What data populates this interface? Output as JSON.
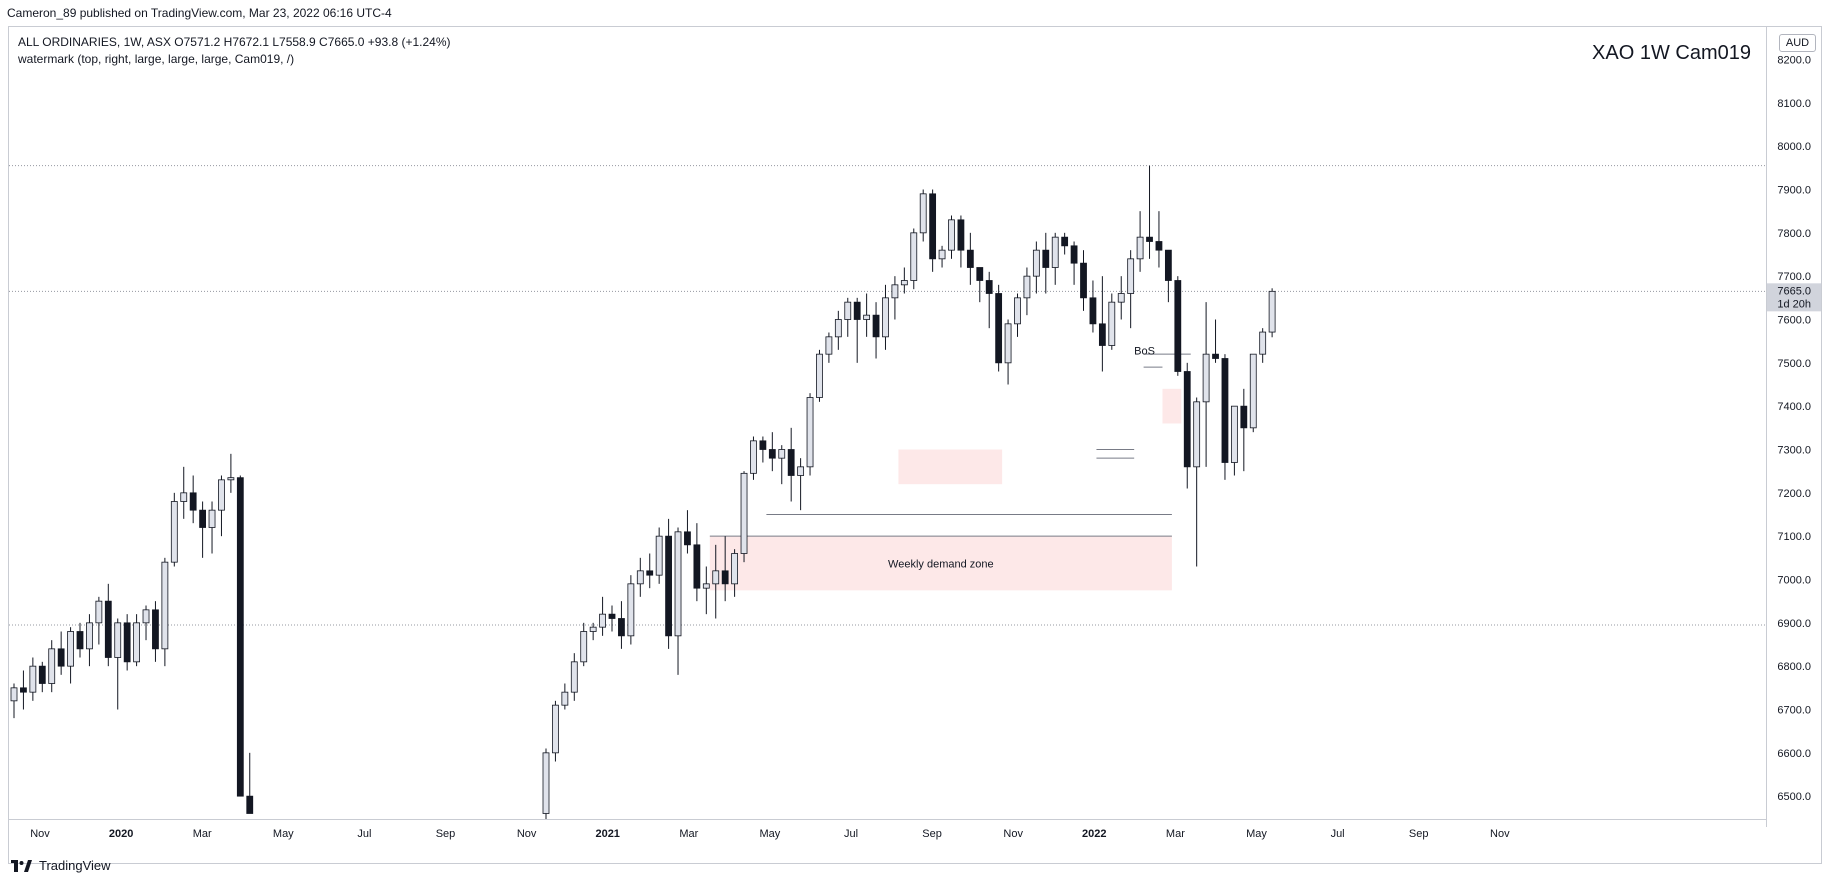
{
  "header": {
    "publisher_line": "Cameron_89 published on TradingView.com, Mar 23, 2022 06:16 UTC-4"
  },
  "legend": {
    "line1": "ALL ORDINARIES, 1W, ASX  O7571.2  H7672.1  L7558.9  C7665.0  +93.8 (+1.24%)",
    "line2": "watermark (top, right, large, large, large, Cam019, /)"
  },
  "watermark": {
    "text": "XAO 1W   Cam019"
  },
  "currency": "AUD",
  "brand": {
    "name": "TradingView",
    "logo_icon": "tradingview-logo-icon"
  },
  "chart_data": {
    "type": "candlestick",
    "instrument": "ALL ORDINARIES",
    "interval": "1W",
    "exchange": "ASX",
    "ohlc": {
      "open": 7571.2,
      "high": 7672.1,
      "low": 7558.9,
      "close": 7665.0,
      "change": 93.8,
      "change_pct": "+1.24%"
    },
    "last_price_label": "7665.0",
    "countdown_label": "1d 20h",
    "y_axis": {
      "ylim": [
        6460,
        8250
      ],
      "tick_labels": [
        "8200.0",
        "8100.0",
        "8000.0",
        "7900.0",
        "7800.0",
        "7700.0",
        "7600.0",
        "7500.0",
        "7400.0",
        "7300.0",
        "7200.0",
        "7100.0",
        "7000.0",
        "6900.0",
        "6800.0",
        "6700.0",
        "6600.0",
        "6500.0"
      ]
    },
    "x_axis": {
      "tick_labels": [
        {
          "label": "Nov",
          "bold": false
        },
        {
          "label": "2020",
          "bold": true
        },
        {
          "label": "Mar",
          "bold": false
        },
        {
          "label": "May",
          "bold": false
        },
        {
          "label": "Jul",
          "bold": false
        },
        {
          "label": "Sep",
          "bold": false
        },
        {
          "label": "Nov",
          "bold": false
        },
        {
          "label": "2021",
          "bold": true
        },
        {
          "label": "Mar",
          "bold": false
        },
        {
          "label": "May",
          "bold": false
        },
        {
          "label": "Jul",
          "bold": false
        },
        {
          "label": "Sep",
          "bold": false
        },
        {
          "label": "Nov",
          "bold": false
        },
        {
          "label": "2022",
          "bold": true
        },
        {
          "label": "Mar",
          "bold": false
        },
        {
          "label": "May",
          "bold": false
        },
        {
          "label": "Jul",
          "bold": false
        },
        {
          "label": "Sep",
          "bold": false
        },
        {
          "label": "Nov",
          "bold": false
        }
      ]
    },
    "horizontal_levels": [
      {
        "price": 7955,
        "style": "dotted"
      },
      {
        "price": 7665,
        "style": "dotted"
      },
      {
        "price": 6895,
        "style": "dotted"
      }
    ],
    "zones": [
      {
        "label": "Weekly demand zone",
        "from": 6975,
        "to": 7100
      },
      {
        "label": "",
        "from": 7360,
        "to": 7440
      },
      {
        "label": "",
        "from": 7220,
        "to": 7300
      }
    ],
    "level_lines": [
      {
        "price": 7150
      },
      {
        "price": 7100
      },
      {
        "price": 7520
      },
      {
        "price": 7490
      },
      {
        "price": 7300
      },
      {
        "price": 7280
      }
    ],
    "annotations": [
      {
        "text": "BoS"
      }
    ],
    "candles_2019": [
      [
        6720,
        6760,
        6680,
        6750
      ],
      [
        6750,
        6790,
        6700,
        6740
      ],
      [
        6740,
        6820,
        6720,
        6800
      ],
      [
        6800,
        6810,
        6740,
        6760
      ],
      [
        6760,
        6860,
        6740,
        6840
      ],
      [
        6840,
        6880,
        6780,
        6800
      ],
      [
        6800,
        6890,
        6760,
        6880
      ],
      [
        6880,
        6900,
        6820,
        6840
      ],
      [
        6840,
        6920,
        6800,
        6900
      ],
      [
        6900,
        6960,
        6850,
        6950
      ],
      [
        6950,
        6990,
        6800,
        6820
      ],
      [
        6820,
        6910,
        6700,
        6900
      ],
      [
        6900,
        6920,
        6790,
        6810
      ],
      [
        6810,
        6920,
        6800,
        6900
      ],
      [
        6900,
        6940,
        6860,
        6930
      ],
      [
        6930,
        6950,
        6810,
        6840
      ],
      [
        6840,
        7050,
        6800,
        7040
      ],
      [
        7040,
        7200,
        7030,
        7180
      ],
      [
        7180,
        7260,
        7140,
        7200
      ],
      [
        7200,
        7240,
        7130,
        7160
      ],
      [
        7160,
        7180,
        7050,
        7120
      ],
      [
        7120,
        7180,
        7060,
        7160
      ],
      [
        7160,
        7240,
        7100,
        7230
      ],
      [
        7230,
        7290,
        7200,
        7235
      ],
      [
        7235,
        7240,
        7000,
        6500
      ]
    ],
    "candles_crash_tail": [
      [
        6500,
        6600,
        6470,
        6460
      ]
    ],
    "candles_recovery": [
      [
        6460,
        6610,
        6440,
        6600
      ],
      [
        6600,
        6720,
        6580,
        6710
      ],
      [
        6710,
        6760,
        6700,
        6740
      ],
      [
        6740,
        6830,
        6720,
        6810
      ],
      [
        6810,
        6900,
        6800,
        6880
      ],
      [
        6880,
        6900,
        6860,
        6890
      ],
      [
        6890,
        6960,
        6870,
        6920
      ],
      [
        6920,
        6940,
        6880,
        6910
      ],
      [
        6910,
        6950,
        6840,
        6870
      ],
      [
        6870,
        7010,
        6850,
        6990
      ],
      [
        6990,
        7050,
        6960,
        7020
      ],
      [
        7020,
        7060,
        6980,
        7010
      ],
      [
        7010,
        7120,
        6990,
        7100
      ],
      [
        7100,
        7140,
        6840,
        6870
      ],
      [
        6870,
        7120,
        6780,
        7110
      ],
      [
        7110,
        7160,
        7060,
        7080
      ],
      [
        7080,
        7130,
        6950,
        6980
      ],
      [
        6980,
        7030,
        6920,
        6990
      ],
      [
        6990,
        7080,
        6910,
        7020
      ],
      [
        7020,
        7100,
        6950,
        6990
      ],
      [
        6990,
        7070,
        6960,
        7060
      ],
      [
        7060,
        7250,
        7040,
        7245
      ],
      [
        7245,
        7330,
        7230,
        7320
      ],
      [
        7320,
        7330,
        7270,
        7300
      ],
      [
        7300,
        7340,
        7250,
        7280
      ],
      [
        7280,
        7310,
        7220,
        7300
      ],
      [
        7300,
        7350,
        7180,
        7240
      ],
      [
        7240,
        7280,
        7160,
        7260
      ],
      [
        7260,
        7430,
        7240,
        7420
      ],
      [
        7420,
        7530,
        7410,
        7520
      ],
      [
        7520,
        7570,
        7500,
        7560
      ],
      [
        7560,
        7620,
        7530,
        7600
      ],
      [
        7600,
        7650,
        7560,
        7640
      ],
      [
        7640,
        7650,
        7500,
        7600
      ],
      [
        7600,
        7660,
        7560,
        7610
      ],
      [
        7610,
        7640,
        7510,
        7560
      ],
      [
        7560,
        7680,
        7530,
        7650
      ],
      [
        7650,
        7700,
        7600,
        7680
      ],
      [
        7680,
        7720,
        7660,
        7690
      ],
      [
        7690,
        7810,
        7670,
        7800
      ],
      [
        7800,
        7900,
        7780,
        7890
      ],
      [
        7890,
        7900,
        7710,
        7740
      ],
      [
        7740,
        7770,
        7720,
        7760
      ],
      [
        7760,
        7840,
        7740,
        7830
      ],
      [
        7830,
        7840,
        7720,
        7760
      ],
      [
        7760,
        7800,
        7680,
        7720
      ],
      [
        7720,
        7720,
        7640,
        7690
      ],
      [
        7690,
        7710,
        7580,
        7660
      ],
      [
        7660,
        7680,
        7480,
        7500
      ],
      [
        7500,
        7600,
        7450,
        7590
      ],
      [
        7590,
        7660,
        7560,
        7650
      ],
      [
        7650,
        7720,
        7610,
        7700
      ],
      [
        7700,
        7780,
        7660,
        7760
      ],
      [
        7760,
        7800,
        7660,
        7720
      ],
      [
        7720,
        7800,
        7680,
        7790
      ],
      [
        7790,
        7800,
        7750,
        7770
      ],
      [
        7770,
        7780,
        7680,
        7730
      ],
      [
        7730,
        7760,
        7620,
        7650
      ],
      [
        7650,
        7690,
        7570,
        7590
      ],
      [
        7590,
        7700,
        7480,
        7540
      ],
      [
        7540,
        7660,
        7530,
        7640
      ],
      [
        7640,
        7700,
        7600,
        7660
      ],
      [
        7660,
        7760,
        7580,
        7740
      ],
      [
        7740,
        7850,
        7710,
        7790
      ],
      [
        7790,
        7955,
        7740,
        7780
      ],
      [
        7780,
        7850,
        7720,
        7760
      ],
      [
        7760,
        7760,
        7640,
        7690
      ],
      [
        7690,
        7700,
        7470,
        7480
      ],
      [
        7480,
        7500,
        7210,
        7260
      ],
      [
        7260,
        7420,
        7030,
        7410
      ],
      [
        7410,
        7640,
        7260,
        7520
      ],
      [
        7520,
        7600,
        7500,
        7510
      ],
      [
        7510,
        7520,
        7230,
        7270
      ],
      [
        7270,
        7400,
        7240,
        7400
      ],
      [
        7400,
        7440,
        7250,
        7350
      ],
      [
        7350,
        7460,
        7340,
        7520
      ],
      [
        7520,
        7580,
        7500,
        7571
      ],
      [
        7571,
        7672,
        7559,
        7665
      ]
    ]
  }
}
